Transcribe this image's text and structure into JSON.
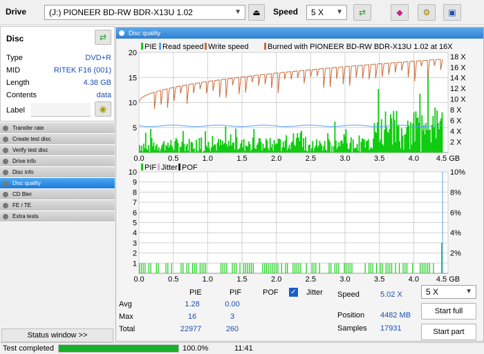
{
  "toolbar": {
    "drive_label": "Drive",
    "drive_value": "(J:)  PIONEER BD-RW   BDR-X13U 1.02",
    "speed_label": "Speed",
    "speed_value": "5 X"
  },
  "disc": {
    "header": "Disc",
    "rows": [
      {
        "label": "Type",
        "value": "DVD+R"
      },
      {
        "label": "MID",
        "value": "RITEK F16 (001)"
      },
      {
        "label": "Length",
        "value": "4.38 GB"
      },
      {
        "label": "Contents",
        "value": "data"
      }
    ],
    "label_field": "Label"
  },
  "nav": [
    "Transfer rate",
    "Create test disc",
    "Verify test disc",
    "Drive info",
    "Disc info",
    "Disc quality",
    "CD Bler",
    "FE / TE",
    "Extra tests"
  ],
  "nav_active": 5,
  "status_window_label": "Status window >>",
  "main_title": "Disc quality",
  "chart_data": [
    {
      "type": "bar",
      "legend": [
        "PIE",
        "Read speed",
        "Write speed",
        "Burned with PIONEER BD-RW   BDR-X13U 1.02 at 16X"
      ],
      "xlim": [
        0,
        4.5
      ],
      "x_ticks": [
        "0.0",
        "0.5",
        "1.0",
        "1.5",
        "2.0",
        "2.5",
        "3.0",
        "3.5",
        "4.0",
        "4.5 GB"
      ],
      "ylim": [
        0,
        20
      ],
      "y_ticks": [
        "20",
        "15",
        "10",
        "5"
      ],
      "y2_ticks": [
        "18 X",
        "16 X",
        "14 X",
        "12 X",
        "10 X",
        "8 X",
        "6 X",
        "4 X",
        "2 X"
      ],
      "pie_avg": 1.28,
      "pie_max": 16,
      "read_speed_x": 5.0,
      "write_speed_start_x": 8,
      "write_speed_end_x": 16
    },
    {
      "type": "bar",
      "legend": [
        "PIF",
        "Jitter",
        "POF"
      ],
      "xlim": [
        0,
        4.5
      ],
      "x_ticks": [
        "0.0",
        "0.5",
        "1.0",
        "1.5",
        "2.0",
        "2.5",
        "3.0",
        "3.5",
        "4.0",
        "4.5 GB"
      ],
      "ylim": [
        0,
        10
      ],
      "y_ticks": [
        "10",
        "9",
        "8",
        "7",
        "6",
        "5",
        "4",
        "3",
        "2",
        "1"
      ],
      "y2_ticks": [
        "10%",
        "8%",
        "6%",
        "4%",
        "2%"
      ],
      "pif_max": 3
    }
  ],
  "stats": {
    "col_pie": "PIE",
    "col_pif": "PIF",
    "col_pof": "POF",
    "col_jitter": "Jitter",
    "row_avg": "Avg",
    "row_max": "Max",
    "row_total": "Total",
    "avg_pie": "1.28",
    "avg_pif": "0.00",
    "max_pie": "16",
    "max_pif": "3",
    "total_pie": "22977",
    "total_pif": "260",
    "speed_label": "Speed",
    "speed_value": "5.02 X",
    "position_label": "Position",
    "position_value": "4482 MB",
    "samples_label": "Samples",
    "samples_value": "17931",
    "speed_select": "5 X",
    "start_full": "Start full",
    "start_part": "Start part"
  },
  "statusbar": {
    "text": "Test completed",
    "progress": 1.0,
    "percent": "100.0%",
    "time": "11:41"
  }
}
